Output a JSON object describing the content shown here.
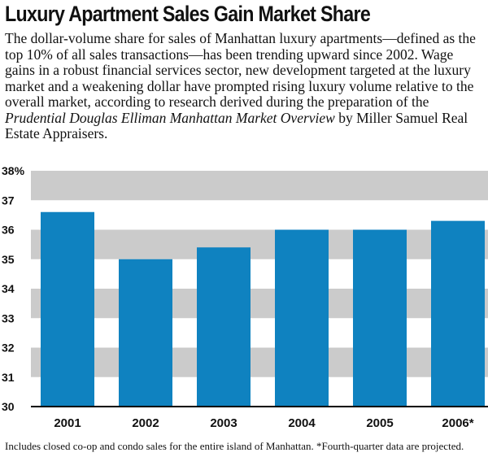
{
  "headline": "Luxury Apartment Sales Gain Market Share",
  "intro": {
    "text_before": "The dollar-volume share for sales of Manhattan luxury apartments—defined as the top 10% of all sales transactions—has been trending upward since 2002. Wage gains in a robust financial services sector, new development targeted at the luxury market and a weakening dollar have prompted rising luxury volume relative to the overall market, according to research derived during the preparation of the ",
    "italic_title": "Prudential Douglas Elliman Manhattan Market Overview",
    "text_after": " by Miller Samuel Real Estate Appraisers."
  },
  "footnote": "Includes closed co-op and condo sales for the entire island of Manhattan. *Fourth-quarter data are projected.",
  "chart_data": {
    "type": "bar",
    "categories": [
      "2001",
      "2002",
      "2003",
      "2004",
      "2005",
      "2006*"
    ],
    "values": [
      36.6,
      35.0,
      35.4,
      36.0,
      36.0,
      36.3
    ],
    "ylim": [
      30,
      38
    ],
    "y_ticks": [
      "30",
      "31",
      "32",
      "33",
      "34",
      "35",
      "36",
      "37",
      "38%"
    ],
    "grid": "alternating horizontal bands",
    "colors": {
      "bar": "#0f82c0",
      "band": "#cbcbcb",
      "axis": "#000000"
    }
  }
}
